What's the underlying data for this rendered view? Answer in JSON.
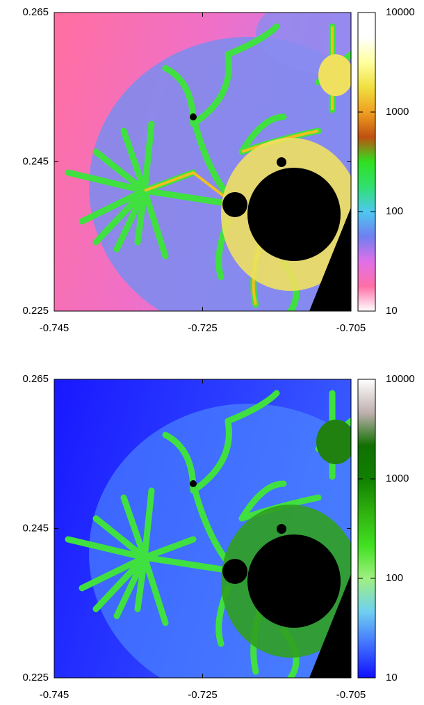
{
  "chart_data": [
    {
      "type": "heatmap",
      "xlim": [
        -0.745,
        -0.705
      ],
      "xticks": [
        -0.745,
        -0.725,
        -0.705
      ],
      "ylim": [
        0.225,
        0.265
      ],
      "yticks": [
        0.225,
        0.245,
        0.265
      ],
      "colorbar": {
        "scale": "log",
        "lim": [
          10,
          10000
        ],
        "ticks": [
          10,
          100,
          1000,
          10000
        ],
        "colors": [
          "#ffffff",
          "#ff6fa8",
          "#e070e8",
          "#6f7ff0",
          "#4ec8f0",
          "#30e070",
          "#30e020",
          "#c05010",
          "#f0a020",
          "#f0e040",
          "#ffffa0",
          "#ffffff",
          "#ffffff"
        ]
      }
    },
    {
      "type": "heatmap",
      "xlim": [
        -0.745,
        -0.705
      ],
      "xticks": [
        -0.745,
        -0.725,
        -0.705
      ],
      "ylim": [
        0.225,
        0.265
      ],
      "yticks": [
        0.225,
        0.245,
        0.265
      ],
      "colorbar": {
        "scale": "log",
        "lim": [
          10,
          10000
        ],
        "ticks": [
          10,
          100,
          1000,
          10000
        ],
        "colors": [
          "#1010ff",
          "#4070ff",
          "#70d0f0",
          "#a0f080",
          "#40e020",
          "#30b010",
          "#108000",
          "#107000",
          "#c0b0b0",
          "#ffffff"
        ]
      }
    }
  ]
}
